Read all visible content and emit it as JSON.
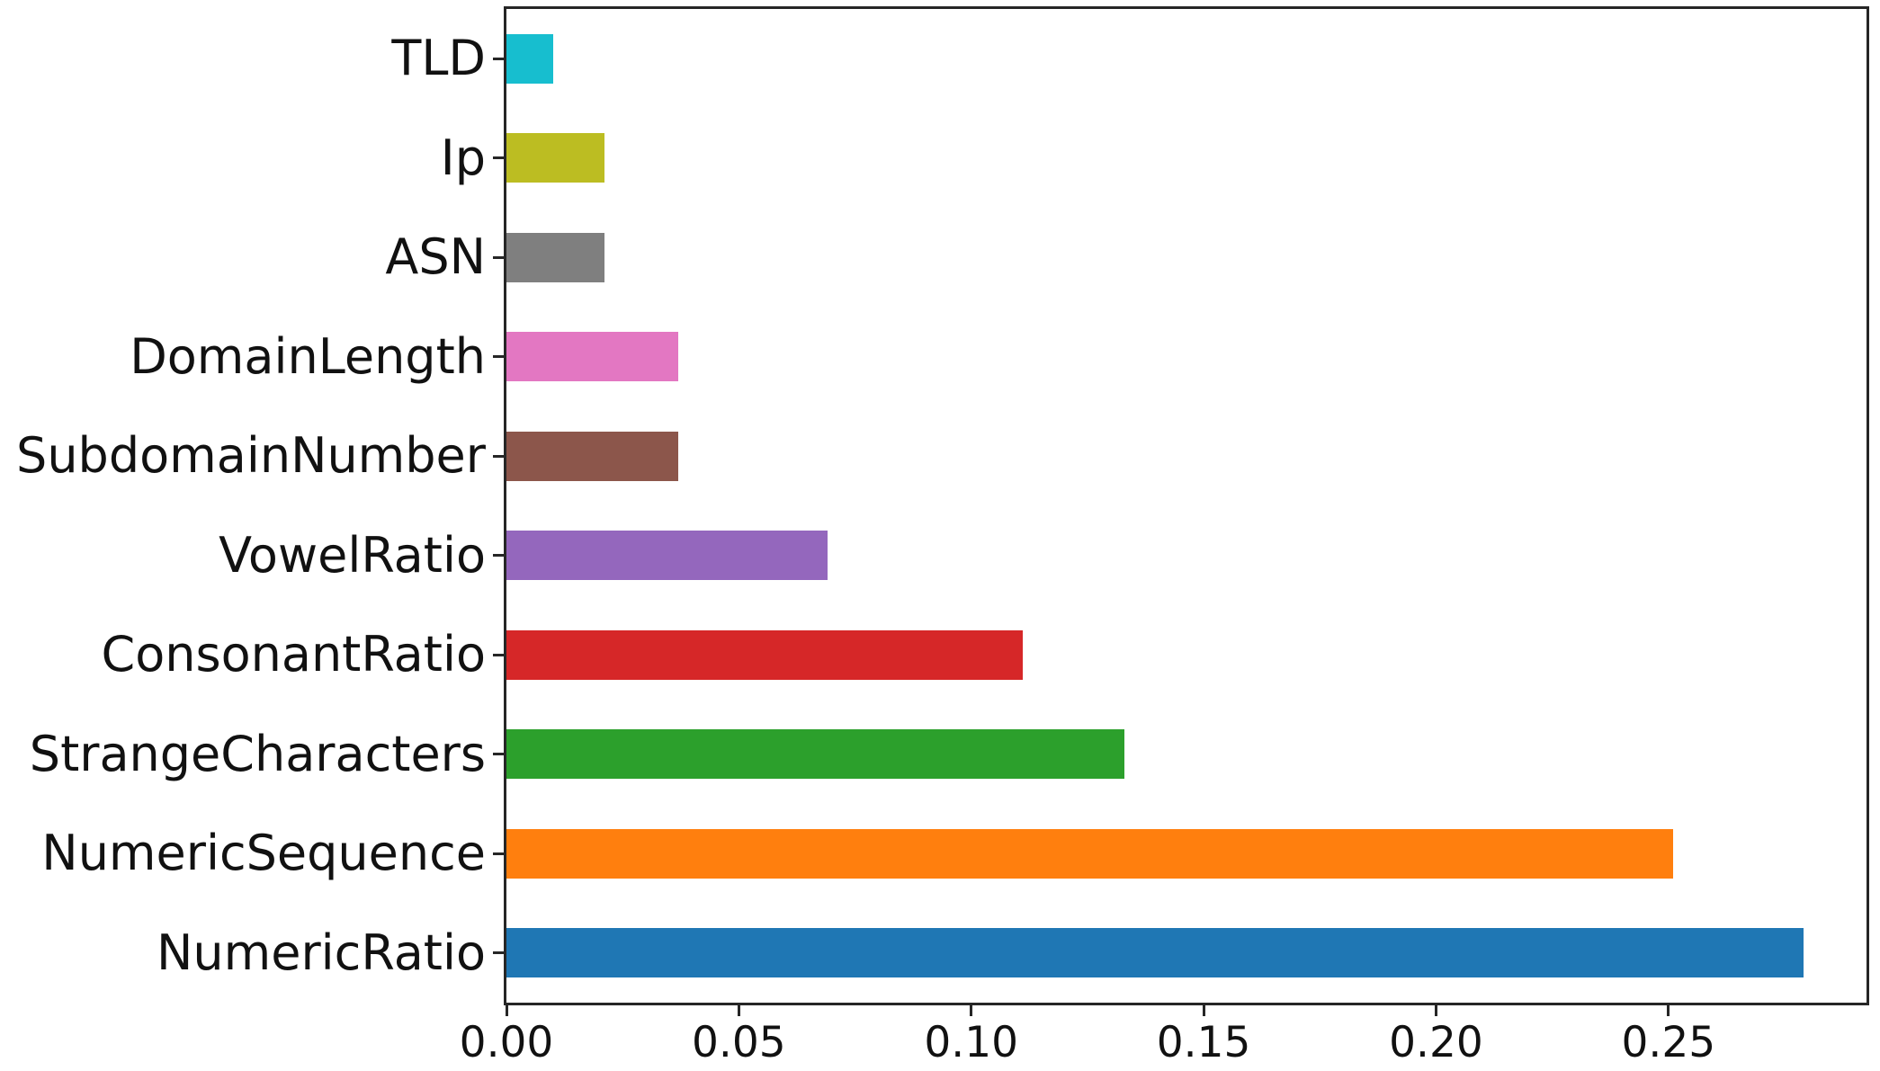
{
  "chart_data": {
    "type": "bar",
    "orientation": "horizontal",
    "title": "",
    "xlabel": "",
    "ylabel": "",
    "categories_top_to_bottom": [
      "TLD",
      "Ip",
      "ASN",
      "DomainLength",
      "SubdomainNumber",
      "VowelRatio",
      "ConsonantRatio",
      "StrangeCharacters",
      "NumericSequence",
      "NumericRatio"
    ],
    "values": [
      0.01,
      0.021,
      0.021,
      0.037,
      0.037,
      0.069,
      0.111,
      0.133,
      0.251,
      0.279
    ],
    "bar_colors": [
      "#17becf",
      "#bcbd22",
      "#7f7f7f",
      "#e377c2",
      "#8c564b",
      "#9467bd",
      "#d62728",
      "#2ca02c",
      "#ff7f0e",
      "#1f77b4"
    ],
    "x_ticks": [
      "0.00",
      "0.05",
      "0.10",
      "0.15",
      "0.20",
      "0.25"
    ],
    "x_tick_values": [
      0.0,
      0.05,
      0.1,
      0.15,
      0.2,
      0.25
    ],
    "xlim": [
      0,
      0.2926
    ],
    "grid": false,
    "legend": "none",
    "bar_relative_height": 0.5
  },
  "style": {
    "background": "#ffffff",
    "spine_color": "#262626",
    "text_color": "#111111"
  }
}
